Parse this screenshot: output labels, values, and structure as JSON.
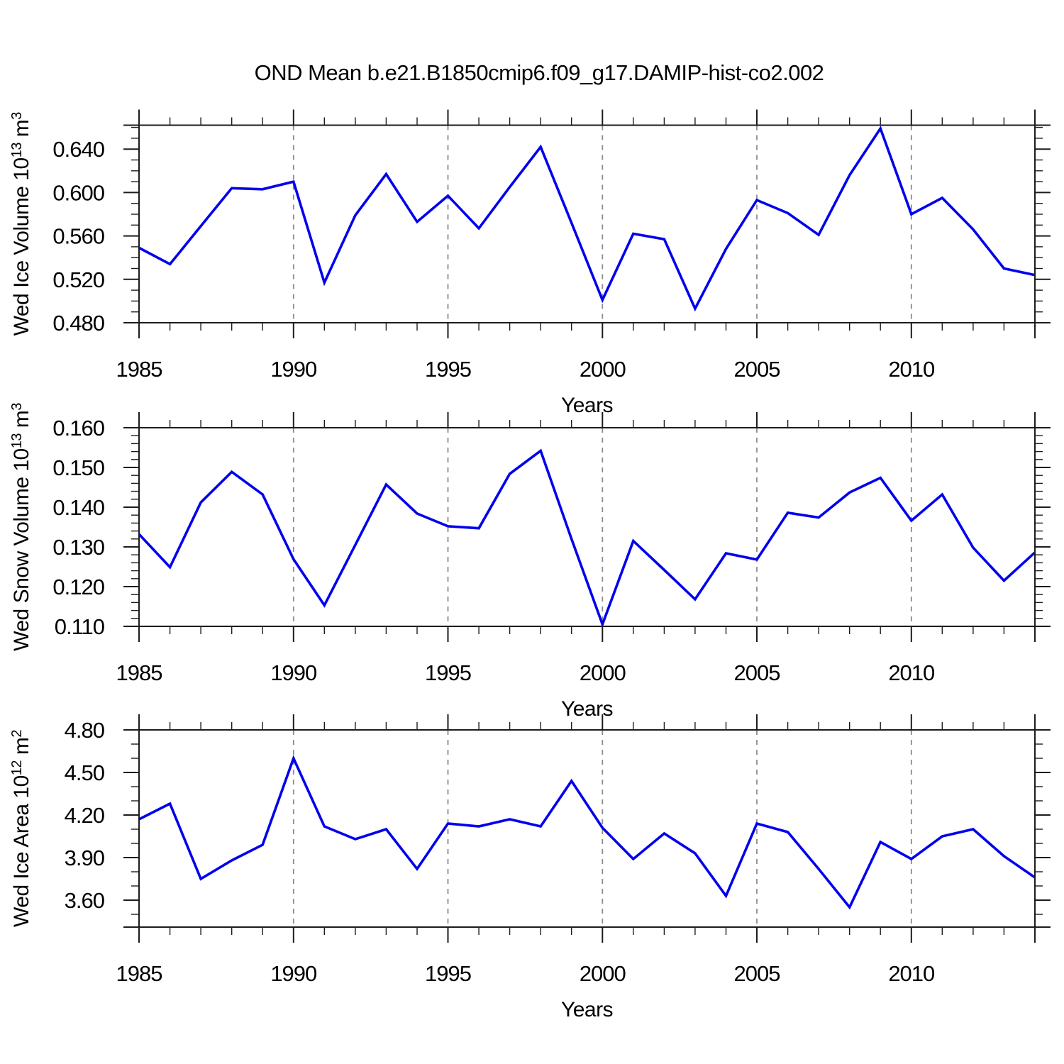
{
  "title": "OND Mean b.e21.B1850cmip6.f09_g17.DAMIP-hist-co2.002",
  "colors": {
    "line": "#0000ee",
    "frame": "#1c1c1c",
    "grid": "#8c8c8c",
    "text": "#000000",
    "background": "#ffffff"
  },
  "chart_data": [
    {
      "type": "line",
      "name": "wed-ice-volume",
      "ylabel_text": "Wed Ice Volume 10^13 m^3",
      "ylabel_parts": [
        {
          "t": "Wed Ice Volume 10"
        },
        {
          "t": "13",
          "sup": true
        },
        {
          "t": " m"
        },
        {
          "t": "3",
          "sup": true
        }
      ],
      "xlabel": "Years",
      "xlim": [
        1985,
        2014
      ],
      "ylim": [
        0.48,
        0.662
      ],
      "x": [
        1985,
        1986,
        1987,
        1988,
        1989,
        1990,
        1991,
        1992,
        1993,
        1994,
        1995,
        1996,
        1997,
        1998,
        1999,
        2000,
        2001,
        2002,
        2003,
        2004,
        2005,
        2006,
        2007,
        2008,
        2009,
        2010,
        2011,
        2012,
        2013,
        2014
      ],
      "values": [
        0.549,
        0.534,
        0.569,
        0.604,
        0.603,
        0.61,
        0.517,
        0.579,
        0.617,
        0.573,
        0.597,
        0.567,
        0.605,
        0.642,
        0.572,
        0.501,
        0.562,
        0.557,
        0.493,
        0.548,
        0.593,
        0.581,
        0.561,
        0.616,
        0.659,
        0.58,
        0.595,
        0.566,
        0.53,
        0.524
      ],
      "yticks": {
        "values": [
          0.48,
          0.52,
          0.56,
          0.6,
          0.64
        ],
        "labels": [
          "0.480",
          "0.520",
          "0.560",
          "0.600",
          "0.640"
        ],
        "minor_step": 0.01
      },
      "xticks": {
        "values": [
          1985,
          1990,
          1995,
          2000,
          2005,
          2010
        ],
        "labels": [
          "1985",
          "1990",
          "1995",
          "2000",
          "2005",
          "2010"
        ],
        "minor_step": 1
      },
      "grid_x": [
        1990,
        1995,
        2000,
        2005,
        2010
      ],
      "grid_style": "vertical-dashed"
    },
    {
      "type": "line",
      "name": "wed-snow-volume",
      "ylabel_text": "Wed Snow Volume 10^13 m^3",
      "ylabel_parts": [
        {
          "t": "Wed Snow Volume 10"
        },
        {
          "t": "13",
          "sup": true
        },
        {
          "t": " m"
        },
        {
          "t": "3",
          "sup": true
        }
      ],
      "xlabel": "Years",
      "xlim": [
        1985,
        2014
      ],
      "ylim": [
        0.11,
        0.16
      ],
      "x": [
        1985,
        1986,
        1987,
        1988,
        1989,
        1990,
        1991,
        1992,
        1993,
        1994,
        1995,
        1996,
        1997,
        1998,
        1999,
        2000,
        2001,
        2002,
        2003,
        2004,
        2005,
        2006,
        2007,
        2008,
        2009,
        2010,
        2011,
        2012,
        2013,
        2014
      ],
      "values": [
        0.1332,
        0.1249,
        0.1412,
        0.1489,
        0.1432,
        0.1269,
        0.1153,
        0.1305,
        0.1457,
        0.1384,
        0.1352,
        0.1347,
        0.1484,
        0.1542,
        0.132,
        0.1105,
        0.1315,
        0.1242,
        0.1168,
        0.1284,
        0.1268,
        0.1386,
        0.1374,
        0.1437,
        0.1474,
        0.1366,
        0.1432,
        0.1298,
        0.1215,
        0.1286
      ],
      "yticks": {
        "values": [
          0.11,
          0.12,
          0.13,
          0.14,
          0.15,
          0.16
        ],
        "labels": [
          "0.110",
          "0.120",
          "0.130",
          "0.140",
          "0.150",
          "0.160"
        ],
        "minor_step": 0.002
      },
      "xticks": {
        "values": [
          1985,
          1990,
          1995,
          2000,
          2005,
          2010
        ],
        "labels": [
          "1985",
          "1990",
          "1995",
          "2000",
          "2005",
          "2010"
        ],
        "minor_step": 1
      },
      "grid_x": [
        1990,
        1995,
        2000,
        2005,
        2010
      ],
      "grid_style": "vertical-dashed"
    },
    {
      "type": "line",
      "name": "wed-ice-area",
      "ylabel_text": "Wed Ice Area 10^12 m^2",
      "ylabel_parts": [
        {
          "t": "Wed Ice Area 10"
        },
        {
          "t": "12",
          "sup": true
        },
        {
          "t": " m"
        },
        {
          "t": "2",
          "sup": true
        }
      ],
      "xlabel": "Years",
      "xlim": [
        1985,
        2014
      ],
      "ylim": [
        3.41,
        4.8
      ],
      "x": [
        1985,
        1986,
        1987,
        1988,
        1989,
        1990,
        1991,
        1992,
        1993,
        1994,
        1995,
        1996,
        1997,
        1998,
        1999,
        2000,
        2001,
        2002,
        2003,
        2004,
        2005,
        2006,
        2007,
        2008,
        2009,
        2010,
        2011,
        2012,
        2013,
        2014
      ],
      "values": [
        4.17,
        4.28,
        3.75,
        3.88,
        3.99,
        4.6,
        4.12,
        4.03,
        4.1,
        3.82,
        4.14,
        4.12,
        4.17,
        4.12,
        4.44,
        4.11,
        3.89,
        4.07,
        3.93,
        3.63,
        4.14,
        4.08,
        3.82,
        3.55,
        4.01,
        3.89,
        4.05,
        4.1,
        3.91,
        3.76
      ],
      "yticks": {
        "values": [
          3.6,
          3.9,
          4.2,
          4.5,
          4.8
        ],
        "labels": [
          "3.60",
          "3.90",
          "4.20",
          "4.50",
          "4.80"
        ],
        "minor_step": 0.1
      },
      "xticks": {
        "values": [
          1985,
          1990,
          1995,
          2000,
          2005,
          2010
        ],
        "labels": [
          "1985",
          "1990",
          "1995",
          "2000",
          "2005",
          "2010"
        ],
        "minor_step": 1
      },
      "grid_x": [
        1990,
        1995,
        2000,
        2005,
        2010
      ],
      "grid_style": "vertical-dashed"
    }
  ]
}
